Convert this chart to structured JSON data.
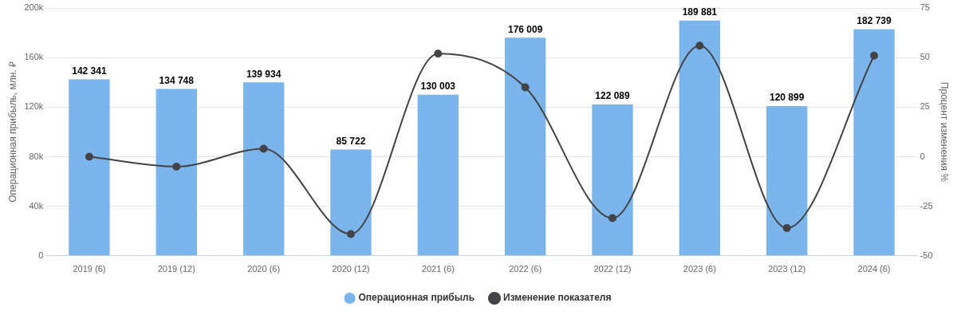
{
  "chart_data": {
    "type": "bar",
    "categories": [
      "2019 (6)",
      "2019 (12)",
      "2020 (6)",
      "2020 (12)",
      "2021 (6)",
      "2022 (6)",
      "2022 (12)",
      "2023 (6)",
      "2023 (12)",
      "2024 (6)"
    ],
    "series": [
      {
        "name": "Операционная прибыль",
        "color": "#7cb5ec",
        "values": [
          142341,
          134748,
          139934,
          85722,
          130003,
          176009,
          122089,
          189881,
          120899,
          182739
        ],
        "value_labels": [
          "142 341",
          "134 748",
          "139 934",
          "85 722",
          "130 003",
          "176 009",
          "122 089",
          "189 881",
          "120 899",
          "182 739"
        ]
      },
      {
        "name": "Изменение показателя",
        "type": "line",
        "axis": "y2",
        "color": "#434348",
        "values": [
          0,
          -5,
          4,
          -39,
          52,
          35,
          -31,
          56,
          -36,
          51
        ]
      }
    ],
    "ylabel": "Операционная прибыль, млн. ₽",
    "y2label": "Процент изменения %",
    "ylim": [
      0,
      200000
    ],
    "yticks": [
      0,
      {
        "value": 40000,
        "label": "40k"
      },
      {
        "value": 80000,
        "label": "80k"
      },
      {
        "value": 120000,
        "label": "120k"
      },
      {
        "value": 160000,
        "label": "160k"
      },
      {
        "value": 200000,
        "label": "200k"
      }
    ],
    "y2lim": [
      -50,
      75
    ],
    "y2ticks": [
      -50,
      -25,
      0,
      25,
      50,
      75
    ],
    "grid": "y",
    "legend": "bottom",
    "marker": "circle",
    "line_style": "solid"
  }
}
